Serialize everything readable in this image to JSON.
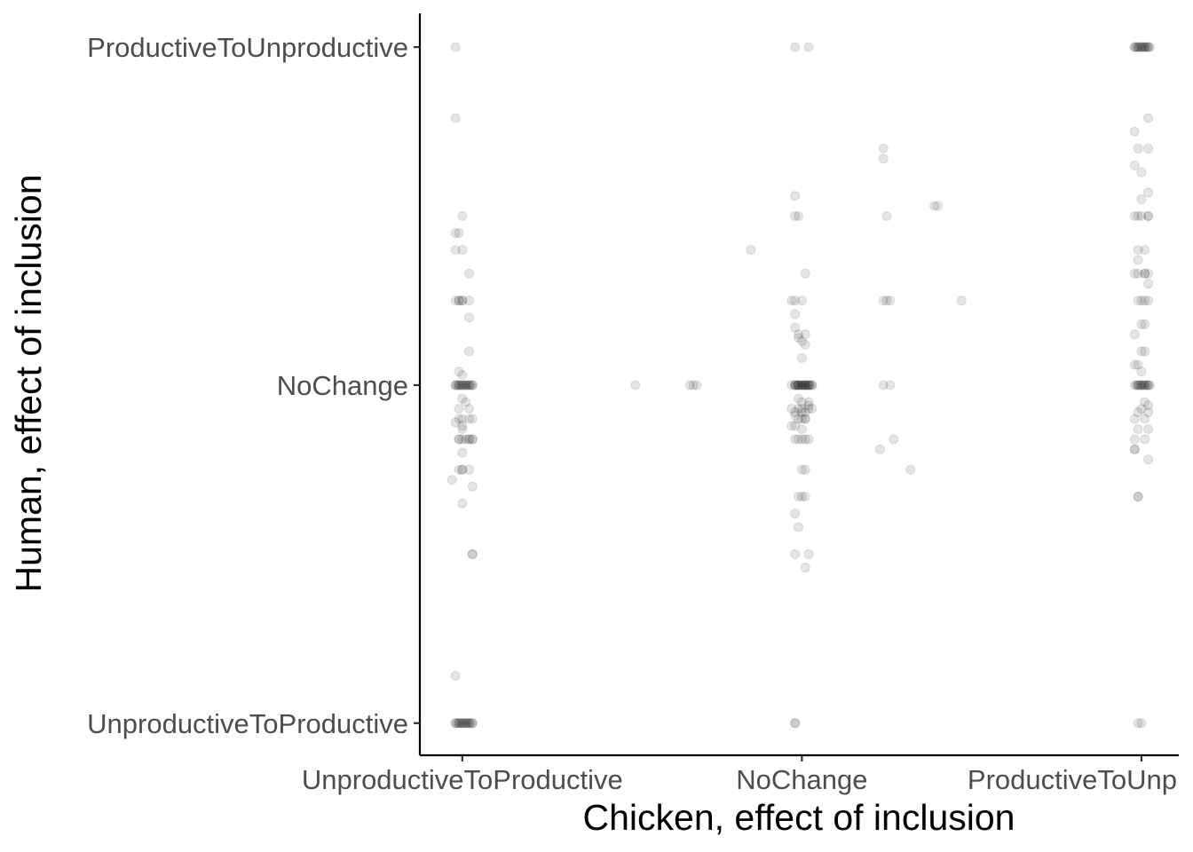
{
  "chart_data": {
    "type": "scatter",
    "jitter": true,
    "xlabel": "Chicken, effect of inclusion",
    "ylabel": "Human, effect of inclusion",
    "x_categories": [
      "UnproductiveToProductive",
      "NoChange",
      "ProductiveToUnproductive"
    ],
    "y_categories": [
      "UnproductiveToProductive",
      "NoChange",
      "ProductiveToUnproductive"
    ],
    "x_tick_labels": [
      "UnproductiveToProductive",
      "NoChange",
      "ProductiveToUnp"
    ],
    "xlim": [
      0.875,
      3.11
    ],
    "ylim": [
      0.905,
      3.1
    ],
    "grid": false,
    "legend": "none",
    "point_color": "#000000",
    "point_alpha": 0.1,
    "points": [
      [
        0.98,
        3.0
      ],
      [
        0.98,
        2.79
      ],
      [
        1.0,
        2.5
      ],
      [
        0.98,
        2.45
      ],
      [
        0.99,
        2.45
      ],
      [
        0.98,
        2.4
      ],
      [
        1.0,
        2.4
      ],
      [
        1.02,
        2.33
      ],
      [
        0.98,
        2.25
      ],
      [
        0.99,
        2.25
      ],
      [
        0.99,
        2.25
      ],
      [
        1.0,
        2.25
      ],
      [
        1.0,
        2.25
      ],
      [
        1.02,
        2.25
      ],
      [
        1.02,
        2.2
      ],
      [
        1.02,
        2.1
      ],
      [
        0.99,
        2.04
      ],
      [
        1.0,
        2.03
      ],
      [
        0.98,
        2.0
      ],
      [
        0.985,
        2.0
      ],
      [
        0.99,
        2.0
      ],
      [
        0.995,
        2.0
      ],
      [
        1.0,
        2.0
      ],
      [
        1.005,
        2.0
      ],
      [
        1.01,
        2.0
      ],
      [
        1.015,
        2.0
      ],
      [
        1.02,
        2.0
      ],
      [
        1.025,
        2.0
      ],
      [
        1.03,
        2.0
      ],
      [
        0.98,
        2.0
      ],
      [
        0.99,
        2.0
      ],
      [
        1.0,
        2.0
      ],
      [
        1.01,
        2.0
      ],
      [
        1.02,
        2.0
      ],
      [
        1.03,
        2.0
      ],
      [
        1.0,
        1.96
      ],
      [
        1.01,
        1.95
      ],
      [
        1.02,
        1.93
      ],
      [
        0.99,
        1.93
      ],
      [
        0.99,
        1.9
      ],
      [
        1.0,
        1.9
      ],
      [
        1.02,
        1.9
      ],
      [
        1.03,
        1.9
      ],
      [
        0.98,
        1.89
      ],
      [
        1.0,
        1.88
      ],
      [
        1.0,
        1.87
      ],
      [
        0.99,
        1.84
      ],
      [
        1.01,
        1.84
      ],
      [
        0.99,
        1.84
      ],
      [
        1.0,
        1.84
      ],
      [
        1.02,
        1.84
      ],
      [
        1.02,
        1.84
      ],
      [
        1.03,
        1.84
      ],
      [
        1.03,
        1.84
      ],
      [
        1.0,
        1.8
      ],
      [
        0.99,
        1.75
      ],
      [
        1.0,
        1.75
      ],
      [
        1.0,
        1.75
      ],
      [
        1.02,
        1.75
      ],
      [
        0.97,
        1.72
      ],
      [
        1.03,
        1.7
      ],
      [
        1.0,
        1.65
      ],
      [
        1.03,
        1.5
      ],
      [
        1.03,
        1.5
      ],
      [
        0.98,
        1.14
      ],
      [
        0.98,
        1.0
      ],
      [
        0.985,
        1.0
      ],
      [
        0.99,
        1.0
      ],
      [
        0.995,
        1.0
      ],
      [
        1.0,
        1.0
      ],
      [
        1.005,
        1.0
      ],
      [
        1.01,
        1.0
      ],
      [
        1.015,
        1.0
      ],
      [
        1.02,
        1.0
      ],
      [
        1.025,
        1.0
      ],
      [
        1.03,
        1.0
      ],
      [
        0.98,
        1.0
      ],
      [
        0.99,
        1.0
      ],
      [
        1.0,
        1.0
      ],
      [
        1.01,
        1.0
      ],
      [
        1.02,
        1.0
      ],
      [
        1.03,
        1.0
      ],
      [
        1.51,
        2.0
      ],
      [
        1.67,
        2.0
      ],
      [
        1.68,
        2.0
      ],
      [
        1.69,
        2.0
      ],
      [
        1.85,
        2.4
      ],
      [
        1.98,
        3.0
      ],
      [
        2.02,
        3.0
      ],
      [
        1.98,
        2.56
      ],
      [
        1.98,
        2.5
      ],
      [
        1.99,
        2.5
      ],
      [
        2.01,
        2.33
      ],
      [
        1.97,
        2.25
      ],
      [
        1.98,
        2.25
      ],
      [
        2.0,
        2.25
      ],
      [
        1.98,
        2.21
      ],
      [
        1.98,
        2.17
      ],
      [
        1.99,
        2.15
      ],
      [
        2.01,
        2.15
      ],
      [
        1.99,
        2.14
      ],
      [
        2.0,
        2.13
      ],
      [
        2.01,
        2.12
      ],
      [
        2.0,
        2.08
      ],
      [
        1.97,
        2.0
      ],
      [
        1.98,
        2.0
      ],
      [
        1.985,
        2.0
      ],
      [
        1.99,
        2.0
      ],
      [
        1.995,
        2.0
      ],
      [
        2.0,
        2.0
      ],
      [
        2.005,
        2.0
      ],
      [
        2.01,
        2.0
      ],
      [
        2.015,
        2.0
      ],
      [
        2.02,
        2.0
      ],
      [
        2.025,
        2.0
      ],
      [
        2.03,
        2.0
      ],
      [
        1.98,
        2.0
      ],
      [
        1.99,
        2.0
      ],
      [
        2.0,
        2.0
      ],
      [
        2.01,
        2.0
      ],
      [
        2.02,
        2.0
      ],
      [
        2.03,
        2.0
      ],
      [
        1.98,
        2.0
      ],
      [
        1.99,
        2.0
      ],
      [
        2.0,
        2.0
      ],
      [
        2.01,
        2.0
      ],
      [
        2.02,
        2.0
      ],
      [
        1.99,
        1.96
      ],
      [
        2.0,
        1.95
      ],
      [
        2.02,
        1.95
      ],
      [
        2.02,
        1.94
      ],
      [
        1.97,
        1.93
      ],
      [
        1.99,
        1.93
      ],
      [
        2.0,
        1.93
      ],
      [
        2.02,
        1.93
      ],
      [
        2.03,
        1.93
      ],
      [
        1.98,
        1.92
      ],
      [
        2.0,
        1.92
      ],
      [
        2.01,
        1.92
      ],
      [
        1.98,
        1.91
      ],
      [
        2.0,
        1.9
      ],
      [
        2.01,
        1.9
      ],
      [
        2.01,
        1.9
      ],
      [
        1.99,
        1.9
      ],
      [
        1.98,
        1.88
      ],
      [
        1.97,
        1.88
      ],
      [
        2.0,
        1.87
      ],
      [
        1.98,
        1.84
      ],
      [
        1.99,
        1.84
      ],
      [
        2.0,
        1.84
      ],
      [
        2.01,
        1.84
      ],
      [
        2.02,
        1.84
      ],
      [
        2.0,
        1.75
      ],
      [
        2.01,
        1.75
      ],
      [
        1.99,
        1.67
      ],
      [
        2.0,
        1.67
      ],
      [
        2.01,
        1.67
      ],
      [
        1.98,
        1.62
      ],
      [
        1.99,
        1.58
      ],
      [
        1.98,
        1.5
      ],
      [
        2.02,
        1.5
      ],
      [
        2.01,
        1.46
      ],
      [
        1.98,
        1.0
      ],
      [
        1.98,
        1.0
      ],
      [
        2.24,
        2.7
      ],
      [
        2.24,
        2.67
      ],
      [
        2.25,
        2.5
      ],
      [
        2.24,
        2.25
      ],
      [
        2.25,
        2.25
      ],
      [
        2.26,
        2.25
      ],
      [
        2.24,
        2.0
      ],
      [
        2.26,
        2.0
      ],
      [
        2.27,
        1.84
      ],
      [
        2.23,
        1.81
      ],
      [
        2.32,
        1.75
      ],
      [
        2.39,
        2.53
      ],
      [
        2.4,
        2.53
      ],
      [
        2.47,
        2.25
      ],
      [
        2.98,
        3.0
      ],
      [
        2.985,
        3.0
      ],
      [
        2.99,
        3.0
      ],
      [
        2.995,
        3.0
      ],
      [
        3.0,
        3.0
      ],
      [
        3.005,
        3.0
      ],
      [
        3.01,
        3.0
      ],
      [
        3.015,
        3.0
      ],
      [
        3.02,
        3.0
      ],
      [
        3.025,
        3.0
      ],
      [
        2.98,
        3.0
      ],
      [
        2.99,
        3.0
      ],
      [
        3.0,
        3.0
      ],
      [
        3.01,
        3.0
      ],
      [
        3.02,
        3.0
      ],
      [
        3.02,
        2.79
      ],
      [
        2.98,
        2.75
      ],
      [
        3.02,
        2.7
      ],
      [
        2.99,
        2.7
      ],
      [
        2.98,
        2.65
      ],
      [
        3.0,
        2.63
      ],
      [
        3.02,
        2.57
      ],
      [
        3.0,
        2.55
      ],
      [
        2.98,
        2.5
      ],
      [
        2.99,
        2.5
      ],
      [
        3.0,
        2.5
      ],
      [
        3.02,
        2.5
      ],
      [
        3.02,
        2.5
      ],
      [
        2.99,
        2.4
      ],
      [
        3.01,
        2.4
      ],
      [
        2.99,
        2.37
      ],
      [
        2.98,
        2.33
      ],
      [
        2.99,
        2.33
      ],
      [
        3.01,
        2.33
      ],
      [
        3.02,
        2.33
      ],
      [
        3.01,
        2.33
      ],
      [
        3.02,
        2.3
      ],
      [
        2.99,
        2.25
      ],
      [
        3.0,
        2.25
      ],
      [
        3.01,
        2.25
      ],
      [
        3.02,
        2.25
      ],
      [
        3.01,
        2.18
      ],
      [
        3.0,
        2.18
      ],
      [
        2.98,
        2.15
      ],
      [
        3.01,
        2.1
      ],
      [
        3.0,
        2.1
      ],
      [
        2.98,
        2.06
      ],
      [
        2.99,
        2.06
      ],
      [
        3.0,
        2.04
      ],
      [
        2.98,
        2.0
      ],
      [
        2.985,
        2.0
      ],
      [
        2.99,
        2.0
      ],
      [
        2.995,
        2.0
      ],
      [
        3.0,
        2.0
      ],
      [
        3.005,
        2.0
      ],
      [
        3.01,
        2.0
      ],
      [
        3.015,
        2.0
      ],
      [
        3.02,
        2.0
      ],
      [
        3.025,
        2.0
      ],
      [
        2.99,
        2.0
      ],
      [
        3.0,
        2.0
      ],
      [
        3.01,
        2.0
      ],
      [
        3.02,
        2.0
      ],
      [
        3.01,
        1.95
      ],
      [
        3.02,
        1.94
      ],
      [
        3.0,
        1.93
      ],
      [
        2.99,
        1.92
      ],
      [
        3.02,
        1.92
      ],
      [
        2.98,
        1.9
      ],
      [
        3.01,
        1.9
      ],
      [
        2.99,
        1.87
      ],
      [
        3.02,
        1.87
      ],
      [
        2.98,
        1.84
      ],
      [
        3.01,
        1.84
      ],
      [
        2.98,
        1.81
      ],
      [
        2.98,
        1.81
      ],
      [
        3.02,
        1.78
      ],
      [
        2.99,
        1.67
      ],
      [
        2.99,
        1.67
      ],
      [
        2.99,
        1.0
      ],
      [
        3.0,
        1.0
      ]
    ]
  }
}
